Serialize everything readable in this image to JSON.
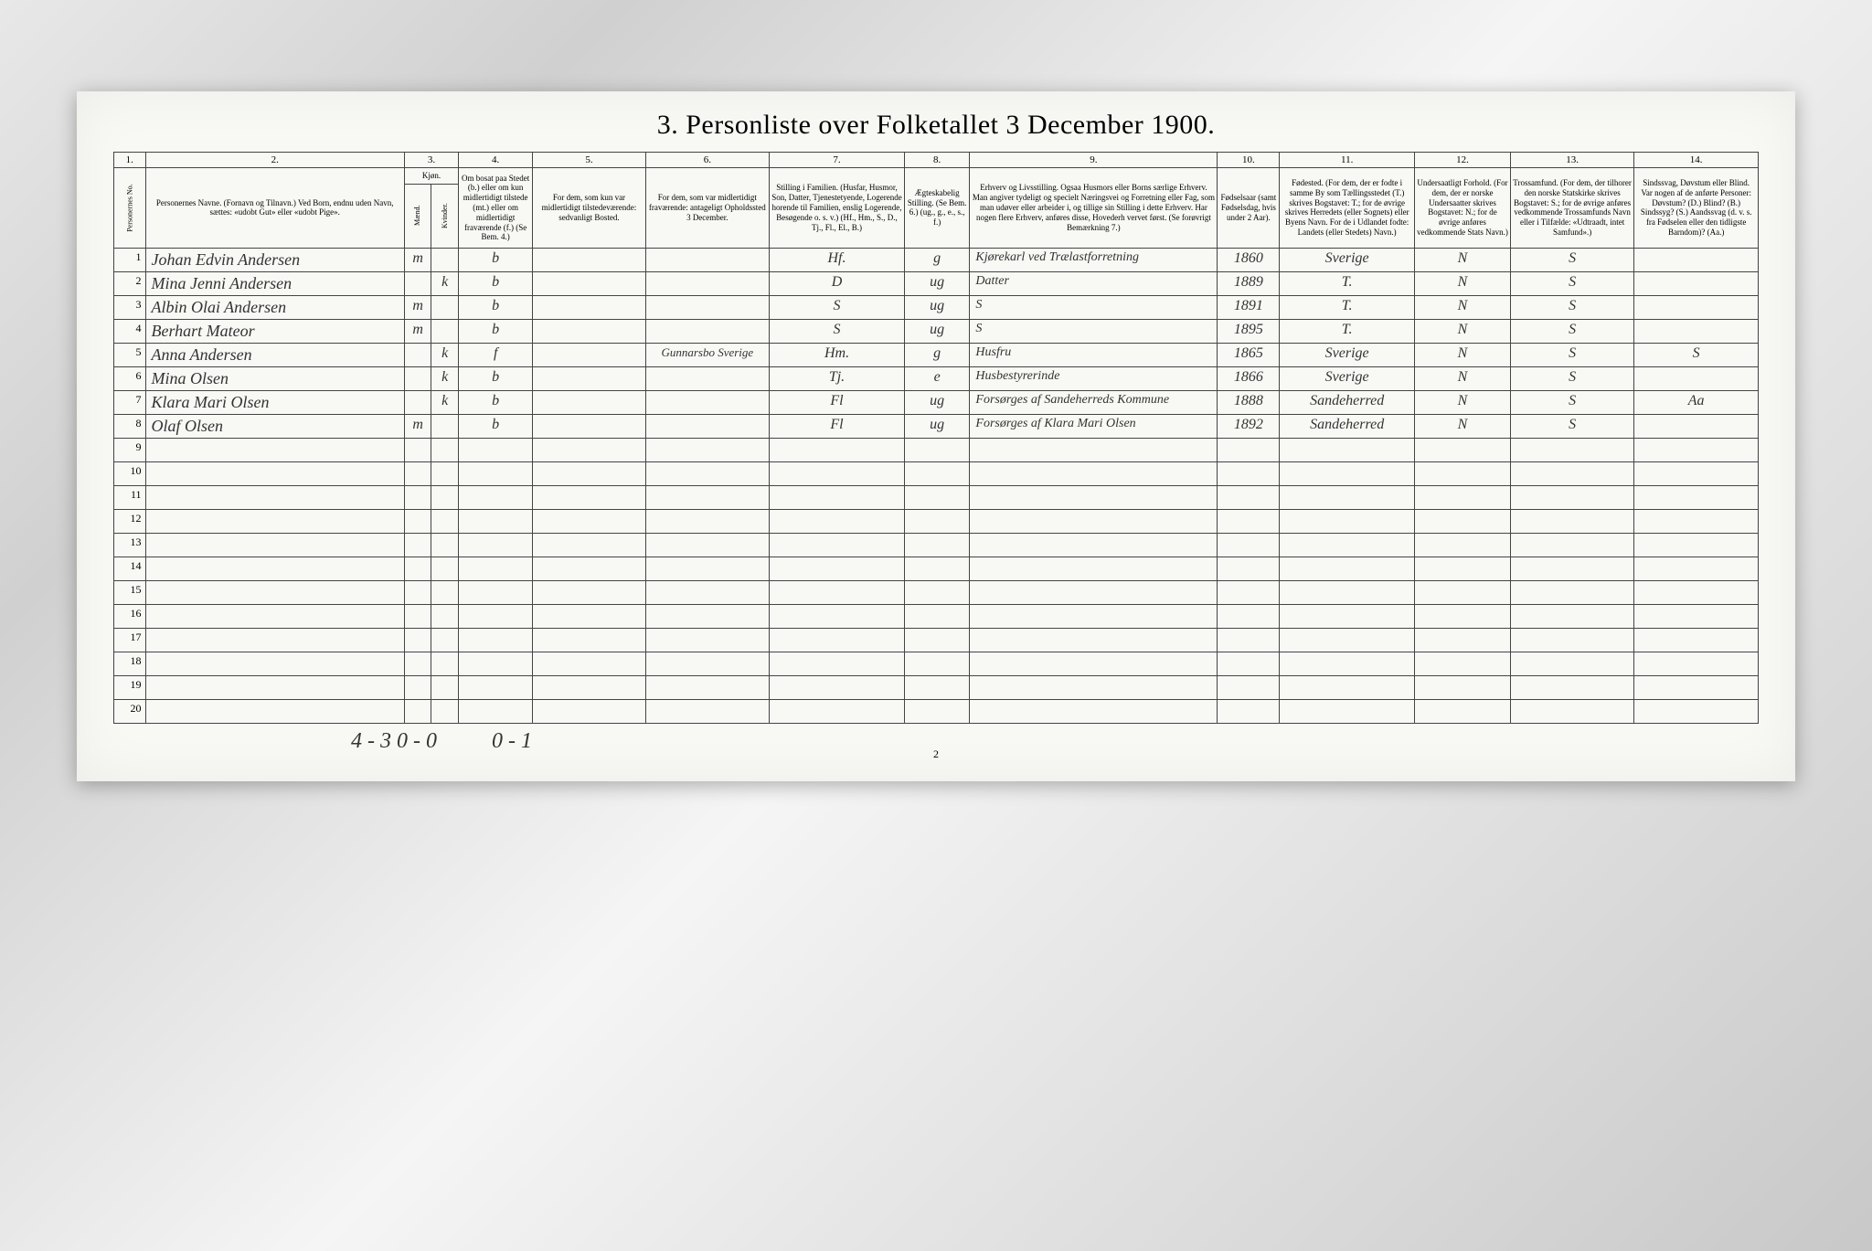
{
  "title": "3. Personliste over Folketallet 3 December 1900.",
  "columns": {
    "nums": [
      "1.",
      "2.",
      "3.",
      "4.",
      "5.",
      "6.",
      "7.",
      "8.",
      "9.",
      "10.",
      "11.",
      "12.",
      "13.",
      "14."
    ],
    "headers": {
      "c1": "Personernes No.",
      "c2": "Personernes Navne.\n(Fornavn og Tilnavn.)\nVed Born, endnu uden Navn, sættes: «udobt Gut» eller «udobt Pige».",
      "c3": "Kjøn.",
      "c3a": "Mænd.",
      "c3b": "Kvinder.",
      "c3sub": "m. k.",
      "c4": "Om bosat paa Stedet (b.) eller om kun midlertidigt tilstede (mt.) eller om midlertidigt fraværende (f.)\n(Se Bem. 4.)",
      "c5": "For dem, som kun var midlertidigt tilstedeværende:\nsedvanligt Bosted.",
      "c6": "For dem, som var midlertidigt fraværende:\nantageligt Opholdssted 3 December.",
      "c7": "Stilling i Familien.\n(Husfar, Husmor, Son, Datter, Tjenestetyende, Logerende horende til Familien, enslig Logerende, Besøgende o. s. v.)\n(Hf., Hm., S., D., Tj., Fl., El., B.)",
      "c8": "Ægteskabelig Stilling.\n(Se Bem. 6.)\n(ug., g., e., s., f.)",
      "c9": "Erhverv og Livsstilling.\nOgsaa Husmors eller Borns særlige Erhverv. Man angiver tydeligt og specielt Næringsvei og Forretning eller Fag, som man udøver eller arbeider i, og tillige sin Stilling i dette Erhverv. Har nogen flere Erhverv, anføres disse, Hovederh vervet først.\n(Se forøvrigt Bemærkning 7.)",
      "c10": "Fødselsaar\n(samt Fødselsdag, hvis under 2 Aar).",
      "c11": "Fødested.\n(For dem, der er fodte i samme By som Tællingsstedet (T.) skrives Bogstavet: T.; for de øvrige skrives Herredets (eller Sognets) eller Byens Navn. For de i Udlandet fodte: Landets (eller Stedets) Navn.)",
      "c12": "Undersaatligt Forhold.\n(For dem, der er norske Undersaatter skrives Bogstavet: N.; for de øvrige anføres vedkommende Stats Navn.)",
      "c13": "Trossamfund.\n(For dem, der tilhorer den norske Statskirke skrives Bogstavet: S.; for de øvrige anføres vedkommende Trossamfunds Navn eller i Tilfælde: «Udtraadt, intet Samfund».)",
      "c14": "Sindssvag, Døvstum eller Blind.\nVar nogen af de anførte Personer: Døvstum? (D.) Blind? (B.) Sindssyg? (S.) Aandssvag (d. v. s. fra Fødselen eller den tidligste Barndom)? (Aa.)"
    }
  },
  "rows": [
    {
      "n": "1",
      "name": "Johan Edvin Andersen",
      "sex": "m",
      "res": "b",
      "c5": "",
      "c6": "",
      "fam": "Hf.",
      "mar": "g",
      "occ": "Kjørekarl ved Trælastforretning",
      "year": "1860",
      "place": "Sverige",
      "nat": "N",
      "rel": "S",
      "dis": ""
    },
    {
      "n": "2",
      "name": "Mina Jenni Andersen",
      "sex": "k",
      "res": "b",
      "c5": "",
      "c6": "",
      "fam": "D",
      "mar": "ug",
      "occ": "Datter",
      "year": "1889",
      "place": "T.",
      "nat": "N",
      "rel": "S",
      "dis": ""
    },
    {
      "n": "3",
      "name": "Albin Olai Andersen",
      "sex": "m",
      "res": "b",
      "c5": "",
      "c6": "",
      "fam": "S",
      "mar": "ug",
      "occ": "S",
      "year": "1891",
      "place": "T.",
      "nat": "N",
      "rel": "S",
      "dis": ""
    },
    {
      "n": "4",
      "name": "Berhart Mateor",
      "sex": "m",
      "res": "b",
      "c5": "",
      "c6": "",
      "fam": "S",
      "mar": "ug",
      "occ": "S",
      "year": "1895",
      "place": "T.",
      "nat": "N",
      "rel": "S",
      "dis": ""
    },
    {
      "n": "5",
      "name": "Anna Andersen",
      "sex": "k",
      "res": "f",
      "c5": "",
      "c6": "Gunnarsbo Sverige",
      "fam": "Hm.",
      "mar": "g",
      "occ": "Husfru",
      "year": "1865",
      "place": "Sverige",
      "nat": "N",
      "rel": "S",
      "dis": "S"
    },
    {
      "n": "6",
      "name": "Mina Olsen",
      "sex": "k",
      "res": "b",
      "c5": "",
      "c6": "",
      "fam": "Tj.",
      "mar": "e",
      "occ": "Husbestyrerinde",
      "year": "1866",
      "place": "Sverige",
      "nat": "N",
      "rel": "S",
      "dis": ""
    },
    {
      "n": "7",
      "name": "Klara Mari Olsen",
      "sex": "k",
      "res": "b",
      "c5": "",
      "c6": "",
      "fam": "Fl",
      "mar": "ug",
      "occ": "Forsørges af Sandeherreds Kommune",
      "year": "1888",
      "place": "Sandeherred",
      "nat": "N",
      "rel": "S",
      "dis": "Aa"
    },
    {
      "n": "8",
      "name": "Olaf Olsen",
      "sex": "m",
      "res": "b",
      "c5": "",
      "c6": "",
      "fam": "Fl",
      "mar": "ug",
      "occ": "Forsørges af Klara Mari Olsen",
      "year": "1892",
      "place": "Sandeherred",
      "nat": "N",
      "rel": "S",
      "dis": ""
    }
  ],
  "empty_rows": [
    "9",
    "10",
    "11",
    "12",
    "13",
    "14",
    "15",
    "16",
    "17",
    "18",
    "19",
    "20"
  ],
  "footer": {
    "left": "4 - 3   0 - 0",
    "mid": "0 - 1",
    "page": "2"
  }
}
